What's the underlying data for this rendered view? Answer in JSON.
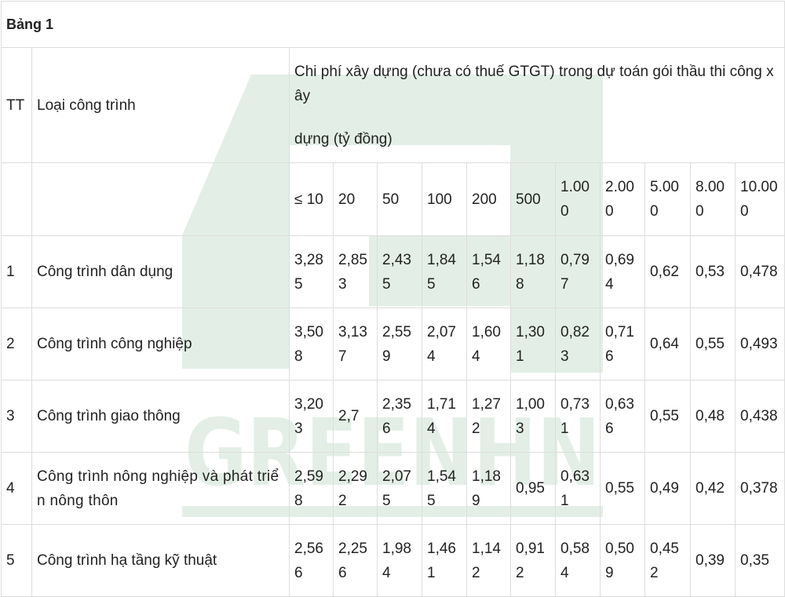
{
  "caption": "Bảng 1",
  "watermark": {
    "text": "GREENHN",
    "color": "#e3efe6"
  },
  "header": {
    "tt": "TT",
    "type": "Loại công trình",
    "cost_line1": "Chi phí xây dựng (chưa có thuế GTGT) trong dự toán gói thầu thi công xây",
    "cost_line2": "dựng (tỷ đồng)"
  },
  "columns": [
    "≤ 10",
    "20",
    "50",
    "100",
    "200",
    "500",
    "1.000",
    "2.000",
    "5.000",
    "8.000",
    "10.000"
  ],
  "rows": [
    {
      "tt": "1",
      "name": "Công trình dân dụng",
      "values": [
        "3,285",
        "2,853",
        "2,435",
        "1,845",
        "1,546",
        "1,188",
        "0,797",
        "0,694",
        "0,62",
        "0,53",
        "0,478"
      ]
    },
    {
      "tt": "2",
      "name": "Công trình công nghiệp",
      "values": [
        "3,508",
        "3,137",
        "2,559",
        "2,074",
        "1,604",
        "1,301",
        "0,823",
        "0,716",
        "0,64",
        "0,55",
        "0,493"
      ]
    },
    {
      "tt": "3",
      "name": "Công trình giao thông",
      "values": [
        "3,203",
        "2,7",
        "2,356",
        "1,714",
        "1,272",
        "1,003",
        "0,731",
        "0,636",
        "0,55",
        "0,48",
        "0,438"
      ]
    },
    {
      "tt": "4",
      "name": "Công trình nông nghiệp và phát triển nông thôn",
      "values": [
        "2,598",
        "2,292",
        "2,075",
        "1,545",
        "1,189",
        "0,95",
        "0,631",
        "0,55",
        "0,49",
        "0,42",
        "0,378"
      ]
    },
    {
      "tt": "5",
      "name": "Công trình hạ tầng kỹ thuật",
      "values": [
        "2,566",
        "2,256",
        "1,984",
        "1,461",
        "1,142",
        "0,912",
        "0,584",
        "0,509",
        "0,452",
        "0,39",
        "0,35"
      ]
    }
  ]
}
